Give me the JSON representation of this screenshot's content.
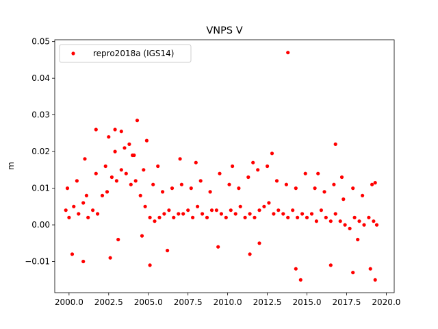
{
  "chart_data": {
    "type": "scatter",
    "title": "VNPS V",
    "xlabel": "",
    "ylabel": "m",
    "xlim": [
      1999.1,
      2020.5
    ],
    "ylim": [
      -0.0185,
      0.0505
    ],
    "x_ticks": [
      2000.0,
      2002.5,
      2005.0,
      2007.5,
      2010.0,
      2012.5,
      2015.0,
      2017.5,
      2020.0
    ],
    "x_tick_labels": [
      "2000.0",
      "2002.5",
      "2005.0",
      "2007.5",
      "2010.0",
      "2012.5",
      "2015.0",
      "2017.5",
      "2020.0"
    ],
    "y_ticks": [
      -0.01,
      0.0,
      0.01,
      0.02,
      0.03,
      0.04,
      0.05
    ],
    "y_tick_labels": [
      "−0.01",
      "0.00",
      "0.01",
      "0.02",
      "0.03",
      "0.04",
      "0.05"
    ],
    "grid": false,
    "legend_position": "top-left",
    "series": [
      {
        "name": "repro2018a (IGS14)",
        "color": "#ff0000",
        "marker": "circle",
        "x": [
          1999.8,
          2000.0,
          2000.3,
          2000.6,
          2000.9,
          2001.2,
          2001.5,
          2001.8,
          2002.1,
          2002.4,
          2002.7,
          2003.0,
          2003.3,
          2003.6,
          2003.9,
          2004.2,
          2004.5,
          2004.8,
          2005.1,
          2005.4,
          2005.7,
          2006.0,
          2006.3,
          2006.6,
          2006.9,
          2007.2,
          2007.5,
          2007.8,
          2008.1,
          2008.4,
          2008.7,
          2009.0,
          2009.3,
          2009.6,
          2009.9,
          2010.2,
          2010.5,
          2010.8,
          2011.1,
          2011.4,
          2011.7,
          2012.0,
          2012.3,
          2012.6,
          2012.9,
          2013.2,
          2013.5,
          2013.8,
          2014.1,
          2014.4,
          2014.7,
          2015.0,
          2015.3,
          2015.6,
          2015.9,
          2016.2,
          2016.5,
          2016.8,
          2017.1,
          2017.4,
          2017.7,
          2018.0,
          2018.3,
          2018.6,
          2018.9,
          2019.2,
          2019.4,
          1999.9,
          2000.5,
          2001.1,
          2001.7,
          2002.3,
          2002.9,
          2003.5,
          2004.1,
          2004.7,
          2005.3,
          2005.9,
          2006.5,
          2007.1,
          2007.7,
          2008.3,
          2008.9,
          2009.5,
          2010.1,
          2010.7,
          2011.3,
          2011.9,
          2012.5,
          2013.1,
          2013.7,
          2014.3,
          2014.9,
          2015.5,
          2016.1,
          2016.7,
          2017.3,
          2017.9,
          2018.5,
          2019.1,
          2001.7,
          2002.9,
          2003.3,
          2004.3,
          2013.8,
          2014.6,
          2016.8,
          2019.3,
          2000.2,
          2003.1,
          2004.6,
          2009.4,
          2012.0,
          2018.2,
          2000.9,
          2002.6,
          2005.1,
          2006.2,
          2011.4,
          2014.3,
          2016.5,
          2017.9,
          2019.0,
          2003.8,
          2004.0,
          2002.5,
          2001.0,
          2008.0,
          2010.3,
          2015.7,
          2017.2,
          2012.8,
          2007.0,
          2005.6,
          2019.3,
          2004.9,
          2011.6
        ],
        "y": [
          0.004,
          0.002,
          0.005,
          0.003,
          0.006,
          0.002,
          0.004,
          0.003,
          0.008,
          0.009,
          0.013,
          0.012,
          0.015,
          0.014,
          0.011,
          0.012,
          0.008,
          0.005,
          0.002,
          0.001,
          0.002,
          0.003,
          0.004,
          0.002,
          0.003,
          0.003,
          0.004,
          0.002,
          0.005,
          0.003,
          0.002,
          0.004,
          0.004,
          0.003,
          0.002,
          0.004,
          0.003,
          0.005,
          0.002,
          0.003,
          0.002,
          0.004,
          0.005,
          0.006,
          0.003,
          0.004,
          0.003,
          0.002,
          0.004,
          0.002,
          0.003,
          0.002,
          0.003,
          0.001,
          0.004,
          0.002,
          0.001,
          0.003,
          0.001,
          0.0,
          -0.001,
          0.002,
          0.001,
          0.0,
          0.002,
          0.001,
          0.0,
          0.01,
          0.012,
          0.008,
          0.014,
          0.016,
          0.02,
          0.021,
          0.019,
          0.015,
          0.011,
          0.009,
          0.01,
          0.011,
          0.01,
          0.012,
          0.009,
          0.014,
          0.011,
          0.01,
          0.013,
          0.015,
          0.016,
          0.012,
          0.011,
          0.01,
          0.014,
          0.01,
          0.009,
          0.011,
          0.007,
          0.01,
          0.008,
          0.011,
          0.026,
          0.026,
          0.0255,
          0.0285,
          0.047,
          -0.015,
          0.022,
          -0.015,
          -0.008,
          -0.004,
          -0.003,
          -0.006,
          -0.005,
          -0.004,
          -0.01,
          -0.009,
          -0.011,
          -0.007,
          -0.008,
          -0.012,
          -0.011,
          -0.013,
          -0.012,
          0.022,
          0.019,
          0.024,
          0.018,
          0.017,
          0.016,
          0.014,
          0.013,
          0.0195,
          0.018,
          0.016,
          0.0115,
          0.023,
          0.017
        ]
      }
    ]
  }
}
